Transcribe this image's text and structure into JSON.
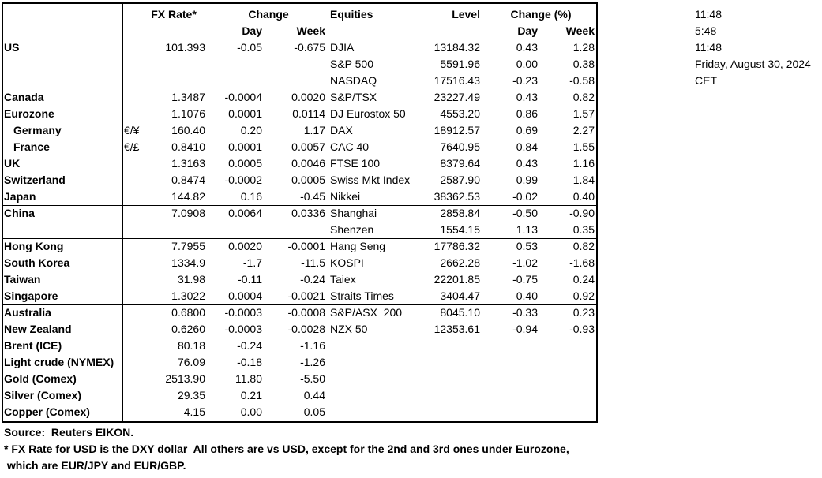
{
  "header": {
    "fx_rate": "FX Rate*",
    "change": "Change",
    "day": "Day",
    "week": "Week",
    "equities": "Equities",
    "level": "Level",
    "change_pct": "Change (%)",
    "eq_day": "Day",
    "eq_week": "Week"
  },
  "table": {
    "rows": [
      [
        "US",
        null,
        "101.393",
        "-0.05",
        "-0.675",
        "DJIA",
        "13184.32",
        "0.43",
        "1.28"
      ],
      [
        null,
        null,
        null,
        null,
        null,
        "S&P 500",
        "5591.96",
        "0.00",
        "0.38"
      ],
      [
        null,
        null,
        null,
        null,
        null,
        "NASDAQ",
        "17516.43",
        "-0.23",
        "-0.58"
      ],
      [
        "Canada",
        null,
        "1.3487",
        "-0.0004",
        "0.0020",
        "S&P/TSX",
        "23227.49",
        "0.43",
        "0.82"
      ],
      [
        "Eurozone",
        null,
        "1.1076",
        "0.0001",
        "0.0114",
        "DJ Eurostox 50",
        "4553.20",
        "0.86",
        "1.57"
      ],
      [
        "Germany",
        "€/¥",
        "160.40",
        "0.20",
        "1.17",
        "DAX",
        "18912.57",
        "0.69",
        "2.27"
      ],
      [
        "France",
        "€/£",
        "0.8410",
        "0.0001",
        "0.0057",
        "CAC 40",
        "7640.95",
        "0.84",
        "1.55"
      ],
      [
        "UK",
        null,
        "1.3163",
        "0.0005",
        "0.0046",
        "FTSE 100",
        "8379.64",
        "0.43",
        "1.16"
      ],
      [
        "Switzerland",
        null,
        "0.8474",
        "-0.0002",
        "0.0005",
        "Swiss Mkt Index",
        "2587.90",
        "0.99",
        "1.84"
      ],
      [
        "Japan",
        null,
        "144.82",
        "0.16",
        "-0.45",
        "Nikkei",
        "38362.53",
        "-0.02",
        "0.40"
      ],
      [
        "China",
        null,
        "7.0908",
        "0.0064",
        "0.0336",
        "Shanghai",
        "2858.84",
        "-0.50",
        "-0.90"
      ],
      [
        null,
        null,
        null,
        null,
        null,
        "Shenzen",
        "1554.15",
        "1.13",
        "0.35"
      ],
      [
        "Hong Kong",
        null,
        "7.7955",
        "0.0020",
        "-0.0001",
        "Hang Seng",
        "17786.32",
        "0.53",
        "0.82"
      ],
      [
        "South Korea",
        null,
        "1334.9",
        "-1.7",
        "-11.5",
        "KOSPI",
        "2662.28",
        "-1.02",
        "-1.68"
      ],
      [
        "Taiwan",
        null,
        "31.98",
        "-0.11",
        "-0.24",
        "Taiex",
        "22201.85",
        "-0.75",
        "0.24"
      ],
      [
        "Singapore",
        null,
        "1.3022",
        "0.0004",
        "-0.0021",
        "Straits Times",
        "3404.47",
        "0.40",
        "0.92"
      ],
      [
        "Australia",
        null,
        "0.6800",
        "-0.0003",
        "-0.0008",
        "S&P/ASX  200",
        "8045.10",
        "-0.33",
        "0.23"
      ],
      [
        "New Zealand",
        null,
        "0.6260",
        "-0.0003",
        "-0.0028",
        "NZX 50",
        "12353.61",
        "-0.94",
        "-0.93"
      ],
      [
        "Brent (ICE)",
        null,
        "80.18",
        "-0.24",
        "-1.16",
        null,
        null,
        null,
        null
      ],
      [
        "Light crude (NYMEX)",
        null,
        "76.09",
        "-0.18",
        "-1.26",
        null,
        null,
        null,
        null
      ],
      [
        "Gold (Comex)",
        null,
        "2513.90",
        "11.80",
        "-5.50",
        null,
        null,
        null,
        null
      ],
      [
        "Silver (Comex)",
        null,
        "29.35",
        "0.21",
        "0.44",
        null,
        null,
        null,
        null
      ],
      [
        "Copper (Comex)",
        null,
        "4.15",
        "0.00",
        "0.05",
        null,
        null,
        null,
        null
      ]
    ]
  },
  "side": [
    "11:48",
    "5:48",
    "11:48",
    "Friday, August 30, 2024",
    "CET"
  ],
  "footer": {
    "source": "Source:  Reuters EIKON.",
    "note1": "* FX Rate for USD is the DXY dollar  All others are vs USD, except for the 2nd and 3rd ones under Eurozone,",
    "note2": " which are EUR/JPY and EUR/GBP."
  }
}
